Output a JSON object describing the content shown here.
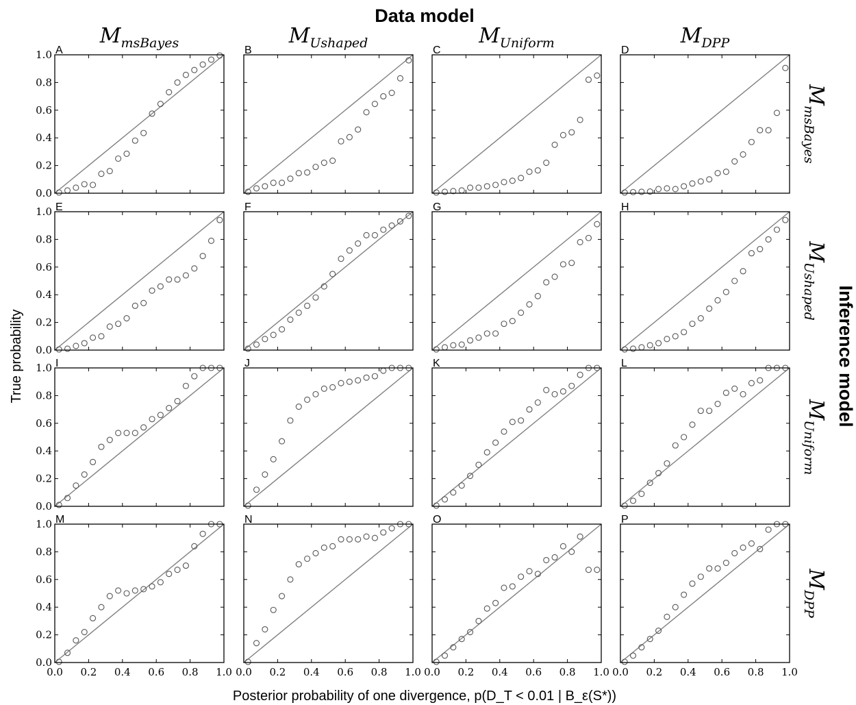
{
  "chart_data": {
    "type": "scatter",
    "figure_title": "Data model",
    "row_group_label": "Inference model",
    "ylabel": "True probability",
    "xlabel": "Posterior probability of one divergence, p(D_T < 0.01 | B_ε(S*))",
    "columns": [
      {
        "base": "M",
        "sub": "msBayes"
      },
      {
        "base": "M",
        "sub": "Ushaped"
      },
      {
        "base": "M",
        "sub": "Uniform"
      },
      {
        "base": "M",
        "sub": "DPP"
      }
    ],
    "rows": [
      {
        "base": "M",
        "sub": "msBayes"
      },
      {
        "base": "M",
        "sub": "Ushaped"
      },
      {
        "base": "M",
        "sub": "Uniform"
      },
      {
        "base": "M",
        "sub": "DPP"
      }
    ],
    "xlim": [
      0,
      1
    ],
    "ylim": [
      0,
      1
    ],
    "x_ticks": [
      "0.0",
      "0.2",
      "0.4",
      "0.6",
      "0.8",
      "1.0"
    ],
    "y_ticks": [
      "0.0",
      "0.2",
      "0.4",
      "0.6",
      "0.8",
      "1.0"
    ],
    "reference_line": "y = x",
    "marker": "open circle",
    "x": [
      0.025,
      0.075,
      0.125,
      0.175,
      0.225,
      0.275,
      0.325,
      0.375,
      0.425,
      0.475,
      0.525,
      0.575,
      0.625,
      0.675,
      0.725,
      0.775,
      0.825,
      0.875,
      0.925,
      0.975
    ],
    "panels": [
      {
        "label": "A",
        "row": 0,
        "col": 0,
        "y": [
          0.005,
          0.02,
          0.04,
          0.065,
          0.06,
          0.14,
          0.16,
          0.25,
          0.285,
          0.38,
          0.435,
          0.575,
          0.645,
          0.73,
          0.8,
          0.855,
          0.89,
          0.93,
          0.965,
          0.995
        ]
      },
      {
        "label": "B",
        "row": 0,
        "col": 1,
        "y": [
          0.01,
          0.035,
          0.05,
          0.075,
          0.075,
          0.105,
          0.145,
          0.15,
          0.19,
          0.22,
          0.235,
          0.375,
          0.405,
          0.46,
          0.585,
          0.645,
          0.7,
          0.725,
          0.83,
          0.96
        ]
      },
      {
        "label": "C",
        "row": 0,
        "col": 2,
        "y": [
          0.005,
          0.01,
          0.015,
          0.02,
          0.04,
          0.04,
          0.05,
          0.06,
          0.08,
          0.09,
          0.11,
          0.155,
          0.165,
          0.22,
          0.35,
          0.42,
          0.44,
          0.53,
          0.82,
          0.85
        ]
      },
      {
        "label": "D",
        "row": 0,
        "col": 3,
        "y": [
          0.005,
          0.008,
          0.01,
          0.012,
          0.03,
          0.035,
          0.03,
          0.05,
          0.07,
          0.085,
          0.1,
          0.145,
          0.155,
          0.23,
          0.28,
          0.37,
          0.455,
          0.455,
          0.58,
          0.905
        ]
      },
      {
        "label": "E",
        "row": 1,
        "col": 0,
        "y": [
          0.005,
          0.01,
          0.03,
          0.05,
          0.09,
          0.1,
          0.17,
          0.19,
          0.23,
          0.32,
          0.34,
          0.43,
          0.46,
          0.51,
          0.51,
          0.54,
          0.59,
          0.68,
          0.79,
          0.94
        ]
      },
      {
        "label": "F",
        "row": 1,
        "col": 1,
        "y": [
          0.01,
          0.04,
          0.08,
          0.11,
          0.15,
          0.22,
          0.27,
          0.32,
          0.38,
          0.46,
          0.55,
          0.66,
          0.72,
          0.77,
          0.83,
          0.83,
          0.87,
          0.9,
          0.93,
          0.97
        ]
      },
      {
        "label": "G",
        "row": 1,
        "col": 2,
        "y": [
          0.005,
          0.02,
          0.035,
          0.04,
          0.07,
          0.09,
          0.12,
          0.12,
          0.19,
          0.21,
          0.27,
          0.33,
          0.39,
          0.49,
          0.53,
          0.62,
          0.63,
          0.78,
          0.81,
          0.91
        ]
      },
      {
        "label": "H",
        "row": 1,
        "col": 3,
        "y": [
          0.005,
          0.01,
          0.02,
          0.035,
          0.05,
          0.08,
          0.1,
          0.13,
          0.19,
          0.23,
          0.3,
          0.36,
          0.42,
          0.5,
          0.57,
          0.7,
          0.73,
          0.8,
          0.87,
          0.94
        ]
      },
      {
        "label": "I",
        "row": 2,
        "col": 0,
        "y": [
          0.01,
          0.06,
          0.15,
          0.23,
          0.32,
          0.43,
          0.48,
          0.53,
          0.53,
          0.53,
          0.57,
          0.63,
          0.66,
          0.71,
          0.76,
          0.87,
          0.94,
          1.0,
          1.0,
          1.0
        ]
      },
      {
        "label": "J",
        "row": 2,
        "col": 1,
        "y": [
          0.005,
          0.12,
          0.23,
          0.34,
          0.47,
          0.62,
          0.72,
          0.77,
          0.81,
          0.85,
          0.86,
          0.89,
          0.9,
          0.91,
          0.93,
          0.94,
          0.98,
          1.0,
          1.0,
          1.0
        ]
      },
      {
        "label": "K",
        "row": 2,
        "col": 2,
        "y": [
          0.005,
          0.05,
          0.1,
          0.15,
          0.22,
          0.3,
          0.39,
          0.46,
          0.54,
          0.61,
          0.62,
          0.7,
          0.75,
          0.84,
          0.81,
          0.83,
          0.87,
          0.95,
          1.0,
          1.0
        ]
      },
      {
        "label": "L",
        "row": 2,
        "col": 3,
        "y": [
          0.005,
          0.04,
          0.09,
          0.17,
          0.24,
          0.31,
          0.44,
          0.5,
          0.59,
          0.69,
          0.69,
          0.74,
          0.82,
          0.85,
          0.81,
          0.89,
          0.91,
          1.0,
          1.0,
          1.0
        ]
      },
      {
        "label": "M",
        "row": 3,
        "col": 0,
        "y": [
          0.005,
          0.07,
          0.16,
          0.22,
          0.32,
          0.4,
          0.48,
          0.52,
          0.5,
          0.52,
          0.53,
          0.55,
          0.58,
          0.64,
          0.67,
          0.7,
          0.84,
          0.93,
          1.0,
          1.0
        ]
      },
      {
        "label": "N",
        "row": 3,
        "col": 1,
        "y": [
          0.005,
          0.14,
          0.24,
          0.38,
          0.48,
          0.6,
          0.71,
          0.75,
          0.79,
          0.83,
          0.84,
          0.89,
          0.89,
          0.89,
          0.91,
          0.9,
          0.94,
          0.97,
          1.0,
          1.0
        ]
      },
      {
        "label": "O",
        "row": 3,
        "col": 2,
        "y": [
          0.005,
          0.05,
          0.11,
          0.17,
          0.22,
          0.3,
          0.39,
          0.43,
          0.54,
          0.55,
          0.62,
          0.66,
          0.64,
          0.74,
          0.76,
          0.84,
          0.8,
          0.91,
          0.67,
          0.67
        ]
      },
      {
        "label": "P",
        "row": 3,
        "col": 3,
        "y": [
          0.005,
          0.05,
          0.11,
          0.17,
          0.23,
          0.33,
          0.4,
          0.49,
          0.57,
          0.62,
          0.68,
          0.68,
          0.72,
          0.79,
          0.83,
          0.86,
          0.82,
          0.96,
          1.0,
          1.0
        ]
      }
    ]
  }
}
